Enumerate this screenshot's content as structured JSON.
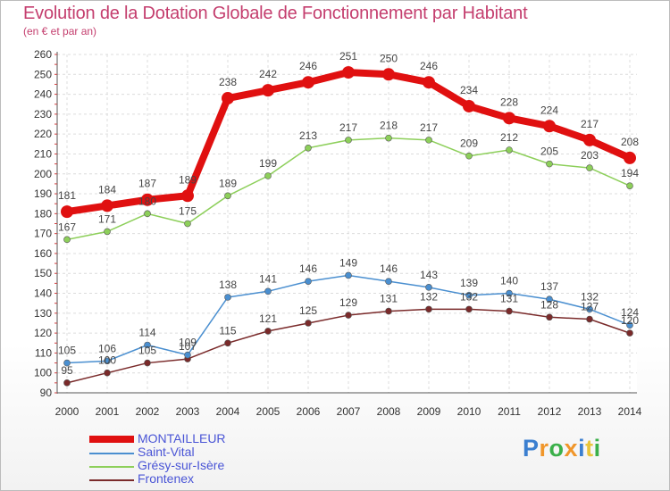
{
  "title": "Evolution de la Dotation Globale de Fonctionnement par Habitant",
  "subtitle": "(en € et par an)",
  "logo": {
    "text": "Proxiti",
    "letters": [
      "P",
      "r",
      "o",
      "x",
      "i",
      "t",
      "i"
    ],
    "colors": [
      "#3b7fd0",
      "#f0962a",
      "#3bb04a",
      "#f0962a",
      "#3b7fd0",
      "#e8c53a",
      "#3bb04a"
    ]
  },
  "chart_data": {
    "type": "line",
    "title": "Evolution de la Dotation Globale de Fonctionnement par Habitant",
    "subtitle": "(en € et par an)",
    "xlabel": "",
    "ylabel": "",
    "x": [
      "2000",
      "2001",
      "2002",
      "2003",
      "2004",
      "2005",
      "2006",
      "2007",
      "2008",
      "2009",
      "2010",
      "2011",
      "2012",
      "2013",
      "2014"
    ],
    "ylim": [
      90,
      260
    ],
    "yticks": [
      90,
      100,
      110,
      120,
      130,
      140,
      150,
      160,
      170,
      180,
      190,
      200,
      210,
      220,
      230,
      240,
      250,
      260
    ],
    "grid": true,
    "legend_position": "bottom-left",
    "series": [
      {
        "name": "MONTAILLEUR",
        "color": "#e01010",
        "values": [
          181,
          184,
          187,
          189,
          238,
          242,
          246,
          251,
          250,
          246,
          234,
          228,
          224,
          217,
          208
        ],
        "labels": [
          "181",
          "184",
          "187",
          "189",
          "238",
          "242",
          "246",
          "251",
          "250",
          "246",
          "234",
          "228",
          "224",
          "217",
          "208"
        ]
      },
      {
        "name": "Saint-Vital",
        "color": "#4a8fd0",
        "values": [
          105,
          106,
          114,
          109,
          138,
          141,
          146,
          149,
          146,
          143,
          139,
          140,
          137,
          132,
          124
        ],
        "labels": [
          "105",
          "106",
          "114",
          "109",
          "138",
          "141",
          "146",
          "149",
          "146",
          "143",
          "139",
          "140",
          "137",
          "132",
          "124"
        ]
      },
      {
        "name": "Grésy-sur-Isère",
        "color": "#8dcf5a",
        "values": [
          167,
          171,
          180,
          175,
          189,
          199,
          213,
          217,
          218,
          217,
          209,
          212,
          205,
          203,
          194
        ],
        "labels": [
          "167",
          "171",
          "180",
          "175",
          "189",
          "199",
          "213",
          "217",
          "218",
          "217",
          "209",
          "212",
          "205",
          "203",
          "194"
        ]
      },
      {
        "name": "Frontenex",
        "color": "#7a2a2a",
        "values": [
          95,
          100,
          105,
          107,
          115,
          121,
          125,
          129,
          131,
          132,
          132,
          131,
          128,
          127,
          120
        ],
        "labels": [
          "95",
          "100",
          "105",
          "107",
          "115",
          "121",
          "125",
          "129",
          "131",
          "132",
          "132",
          "131",
          "128",
          "127",
          "120"
        ]
      }
    ]
  }
}
